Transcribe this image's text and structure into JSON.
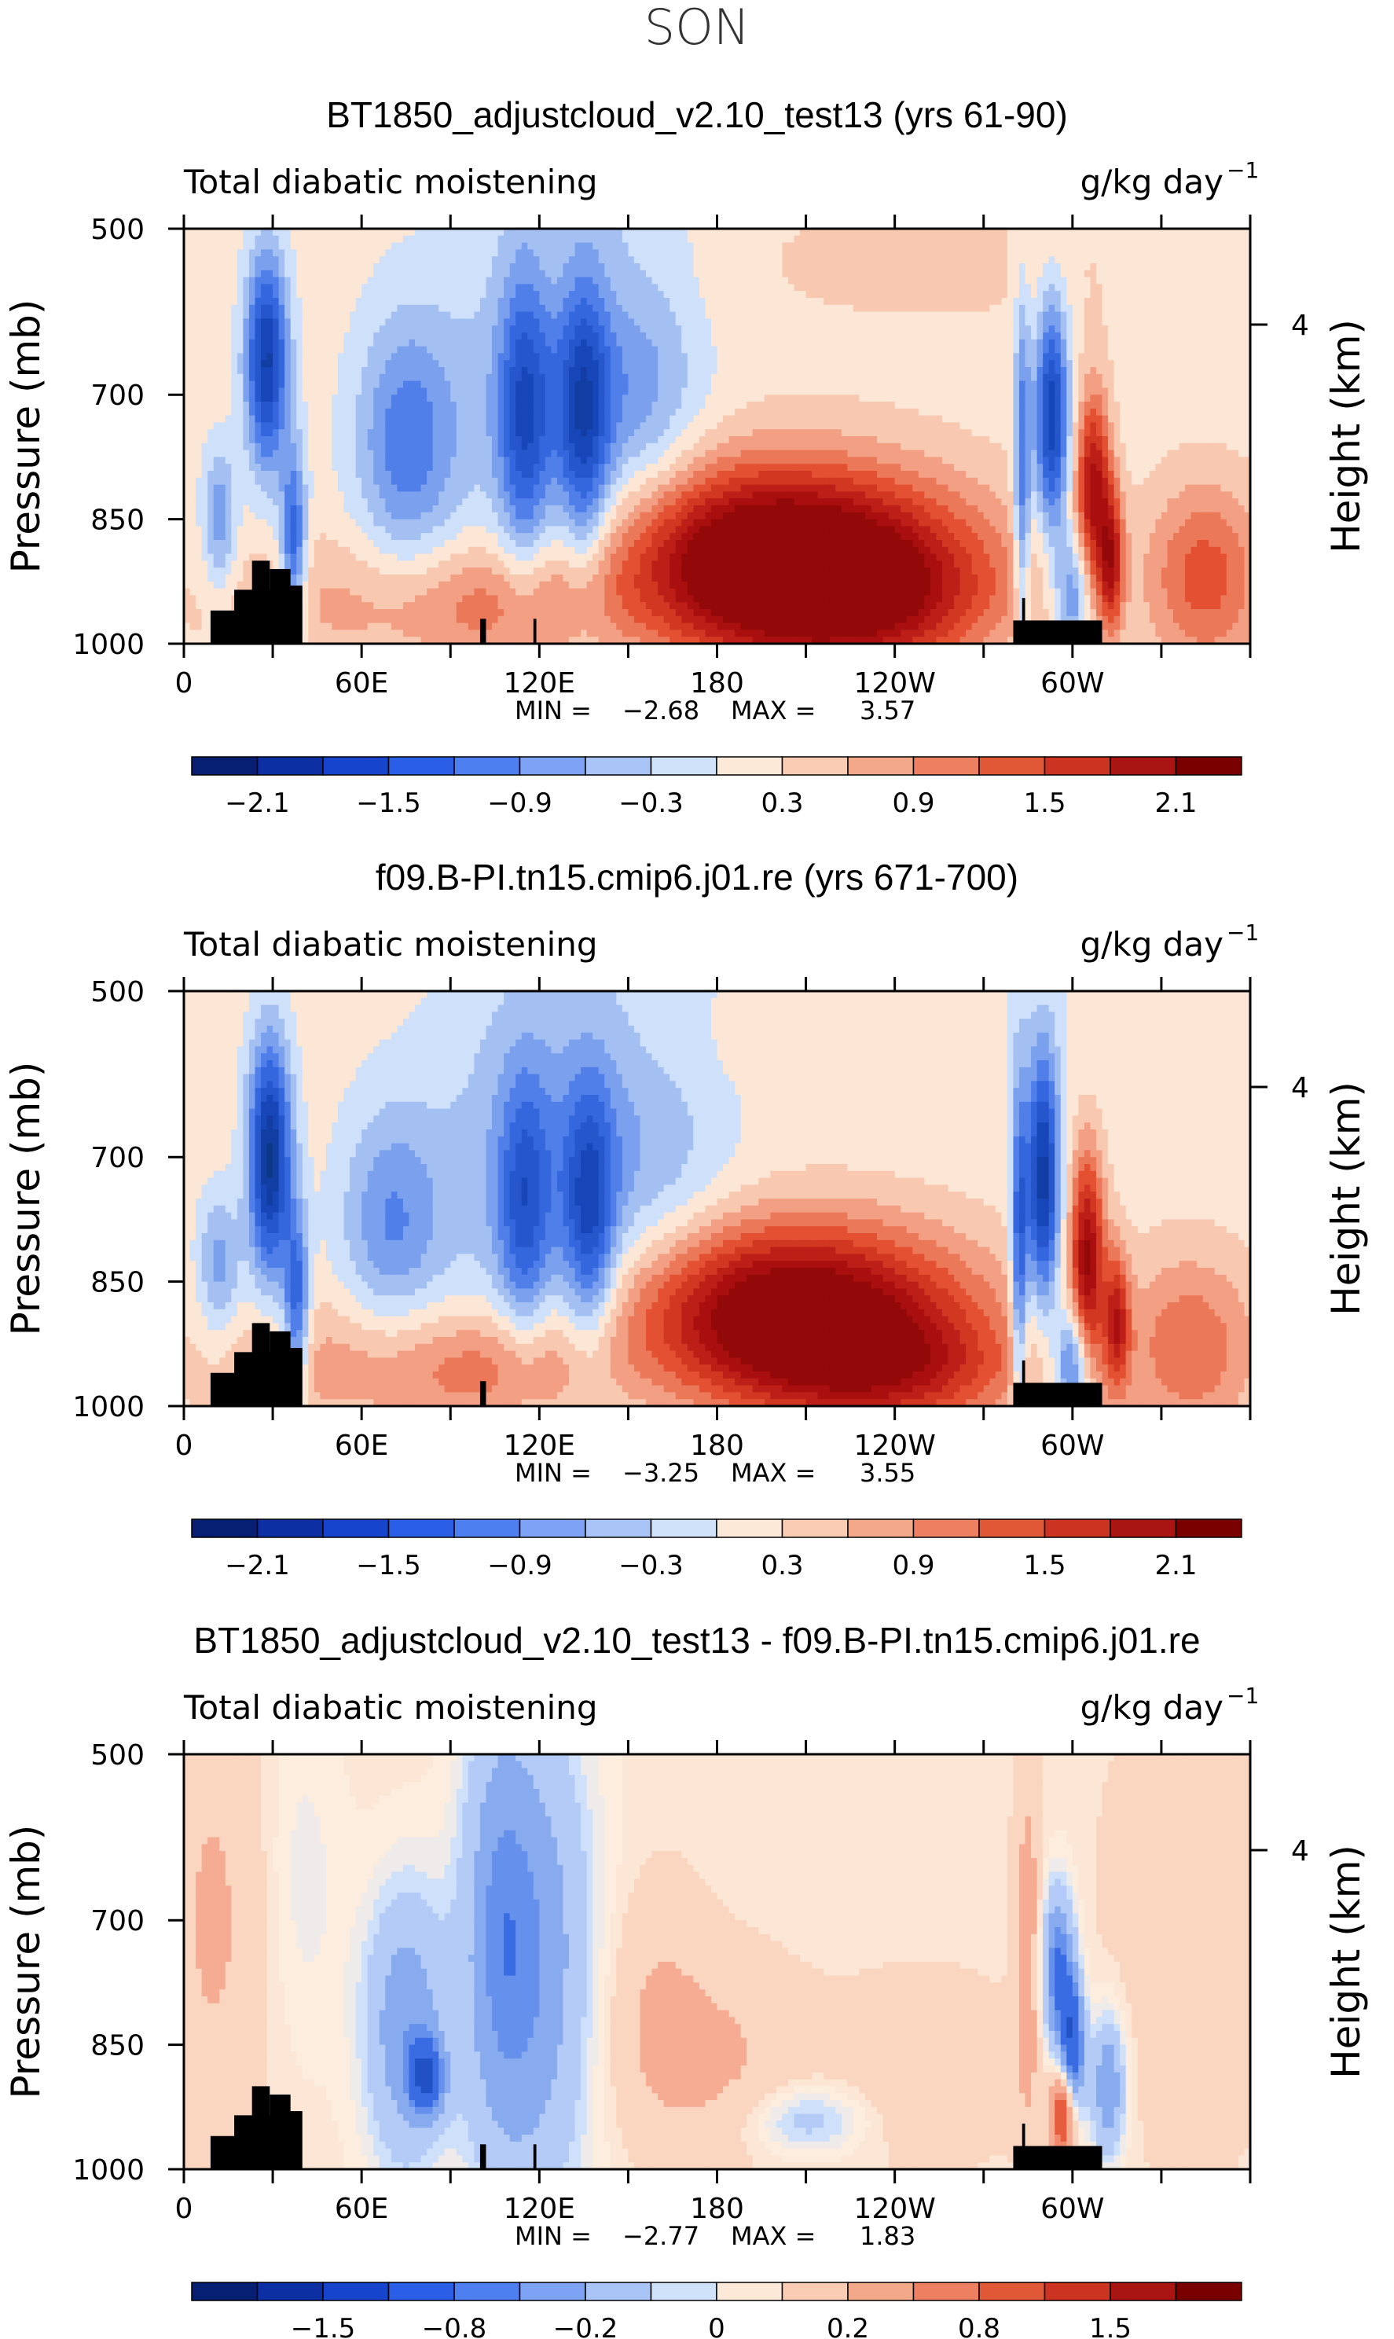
{
  "page": {
    "title": "SON"
  },
  "colors": {
    "map": [
      {
        "v": -3.0,
        "c": "#08306b"
      },
      {
        "v": -2.0,
        "c": "#1543b6"
      },
      {
        "v": -1.2,
        "c": "#3b6fe6"
      },
      {
        "v": -0.6,
        "c": "#8fb0f0"
      },
      {
        "v": -0.15,
        "c": "#cfe0fa"
      },
      {
        "v": 0.0,
        "c": "#fdf0e2"
      },
      {
        "v": 0.3,
        "c": "#fbdcc8"
      },
      {
        "v": 0.8,
        "c": "#f2987c"
      },
      {
        "v": 1.4,
        "c": "#e34b2b"
      },
      {
        "v": 2.1,
        "c": "#b31212"
      },
      {
        "v": 3.0,
        "c": "#7a0000"
      }
    ],
    "colorbar_a": [
      "#061f73",
      "#0c2fa3",
      "#1744cc",
      "#2a5ee6",
      "#4d7ff0",
      "#7ea3f5",
      "#a9c4f7",
      "#d0e1fa",
      "#fde9d8",
      "#f9ccb3",
      "#f3a88a",
      "#ec8060",
      "#e05836",
      "#cc3320",
      "#a81512",
      "#7a0000"
    ],
    "colorbar_b": [
      "#061f73",
      "#0c2fa3",
      "#1744cc",
      "#2a5ee6",
      "#4d7ff0",
      "#7ea3f5",
      "#a9c4f7",
      "#d0e1fa",
      "#fde9d8",
      "#f9ccb3",
      "#f3a88a",
      "#ec8060",
      "#e05836",
      "#cc3320",
      "#a81512",
      "#7a0000"
    ],
    "terrain": "#000000"
  },
  "chart_data": [
    {
      "type": "heatmap",
      "title": "BT1850_adjustcloud_v2.10_test13 (yrs 61-90)",
      "left_label": "Total diabatic moistening",
      "right_label": "g/kg day",
      "units_exp": "−1",
      "ylabel": "Pressure (mb)",
      "right_axis_label": "Height (km)",
      "right_tick": "4",
      "xticks": [
        "0",
        "60E",
        "120E",
        "180",
        "120W",
        "60W"
      ],
      "yticks": [
        "500",
        "700",
        "850",
        "1000"
      ],
      "ylim": [
        1000,
        500
      ],
      "xlim": [
        0,
        360
      ],
      "min_label": "MIN =",
      "min_value": "−2.68",
      "max_label": "MAX =",
      "max_value": "3.57",
      "colorbar_ticks": [
        "−2.1",
        "−1.5",
        "−0.9",
        "−0.3",
        "0.3",
        "0.9",
        "1.5",
        "2.1"
      ],
      "colorbar_levels": [
        -2.4,
        -2.1,
        -1.8,
        -1.5,
        -1.2,
        -0.9,
        -0.6,
        -0.3,
        0,
        0.3,
        0.6,
        0.9,
        1.2,
        1.5,
        1.8,
        2.1,
        2.4
      ],
      "features": [
        {
          "lon": 28,
          "p": 660,
          "dlon": 5,
          "dp": 90,
          "a": -2.3
        },
        {
          "lon": 37,
          "p": 880,
          "dlon": 3,
          "dp": 80,
          "a": -1.6
        },
        {
          "lon": 12,
          "p": 850,
          "dlon": 4,
          "dp": 60,
          "a": -1.0
        },
        {
          "lon": 75,
          "p": 760,
          "dlon": 12,
          "dp": 110,
          "a": -1.2
        },
        {
          "lon": 115,
          "p": 730,
          "dlon": 6,
          "dp": 130,
          "a": -1.4
        },
        {
          "lon": 135,
          "p": 730,
          "dlon": 6,
          "dp": 130,
          "a": -1.5
        },
        {
          "lon": 125,
          "p": 700,
          "dlon": 25,
          "dp": 200,
          "a": -0.8
        },
        {
          "lon": 155,
          "p": 680,
          "dlon": 15,
          "dp": 180,
          "a": -0.6
        },
        {
          "lon": 200,
          "p": 900,
          "dlon": 42,
          "dp": 80,
          "a": 3.2
        },
        {
          "lon": 230,
          "p": 950,
          "dlon": 30,
          "dp": 60,
          "a": 1.2
        },
        {
          "lon": 293,
          "p": 730,
          "dlon": 4,
          "dp": 100,
          "a": -2.2
        },
        {
          "lon": 283,
          "p": 800,
          "dlon": 2,
          "dp": 150,
          "a": -1.4
        },
        {
          "lon": 307,
          "p": 810,
          "dlon": 4,
          "dp": 80,
          "a": 2.0
        },
        {
          "lon": 313,
          "p": 900,
          "dlon": 3,
          "dp": 60,
          "a": 1.8
        },
        {
          "lon": 300,
          "p": 940,
          "dlon": 4,
          "dp": 50,
          "a": -1.2
        },
        {
          "lon": 345,
          "p": 920,
          "dlon": 14,
          "dp": 80,
          "a": 1.2
        },
        {
          "lon": 60,
          "p": 950,
          "dlon": 40,
          "dp": 60,
          "a": 0.5
        },
        {
          "lon": 110,
          "p": 960,
          "dlon": 25,
          "dp": 50,
          "a": 0.7
        },
        {
          "lon": 140,
          "p": 560,
          "dlon": 20,
          "dp": 60,
          "a": 0.3
        },
        {
          "lon": 250,
          "p": 540,
          "dlon": 70,
          "dp": 80,
          "a": 0.2
        }
      ],
      "terrain": [
        {
          "lon0": 9,
          "lon1": 33,
          "p": 960
        },
        {
          "lon0": 17,
          "lon1": 33,
          "p": 935
        },
        {
          "lon0": 23,
          "lon1": 29,
          "p": 900
        },
        {
          "lon0": 29,
          "lon1": 36,
          "p": 910
        },
        {
          "lon0": 33,
          "lon1": 40,
          "p": 930
        },
        {
          "lon0": 280,
          "lon1": 310,
          "p": 972
        },
        {
          "lon0": 283,
          "lon1": 284,
          "p": 945
        },
        {
          "lon0": 100,
          "lon1": 102,
          "p": 970
        },
        {
          "lon0": 118,
          "lon1": 119,
          "p": 970
        }
      ]
    },
    {
      "type": "heatmap",
      "title": "f09.B-PI.tn15.cmip6.j01.re (yrs 671-700)",
      "left_label": "Total diabatic moistening",
      "right_label": "g/kg day",
      "units_exp": "−1",
      "ylabel": "Pressure (mb)",
      "right_axis_label": "Height (km)",
      "right_tick": "4",
      "xticks": [
        "0",
        "60E",
        "120E",
        "180",
        "120W",
        "60W"
      ],
      "yticks": [
        "500",
        "700",
        "850",
        "1000"
      ],
      "ylim": [
        1000,
        500
      ],
      "xlim": [
        0,
        360
      ],
      "min_label": "MIN =",
      "min_value": "−3.25",
      "max_label": "MAX =",
      "max_value": "3.55",
      "colorbar_ticks": [
        "−2.1",
        "−1.5",
        "−0.9",
        "−0.3",
        "0.3",
        "0.9",
        "1.5",
        "2.1"
      ],
      "colorbar_levels": [
        -2.4,
        -2.1,
        -1.8,
        -1.5,
        -1.2,
        -0.9,
        -0.6,
        -0.3,
        0,
        0.3,
        0.6,
        0.9,
        1.2,
        1.5,
        1.8,
        2.1,
        2.4
      ],
      "features": [
        {
          "lon": 29,
          "p": 700,
          "dlon": 5,
          "dp": 100,
          "a": -2.6
        },
        {
          "lon": 38,
          "p": 880,
          "dlon": 3,
          "dp": 80,
          "a": -1.6
        },
        {
          "lon": 12,
          "p": 830,
          "dlon": 5,
          "dp": 60,
          "a": -0.9
        },
        {
          "lon": 70,
          "p": 780,
          "dlon": 12,
          "dp": 100,
          "a": -1.0
        },
        {
          "lon": 115,
          "p": 760,
          "dlon": 6,
          "dp": 110,
          "a": -1.2
        },
        {
          "lon": 137,
          "p": 770,
          "dlon": 6,
          "dp": 110,
          "a": -1.5
        },
        {
          "lon": 120,
          "p": 720,
          "dlon": 25,
          "dp": 200,
          "a": -0.8
        },
        {
          "lon": 160,
          "p": 700,
          "dlon": 20,
          "dp": 180,
          "a": -0.5
        },
        {
          "lon": 205,
          "p": 890,
          "dlon": 40,
          "dp": 75,
          "a": 3.0
        },
        {
          "lon": 240,
          "p": 960,
          "dlon": 30,
          "dp": 50,
          "a": 1.2
        },
        {
          "lon": 290,
          "p": 730,
          "dlon": 4,
          "dp": 110,
          "a": -2.4
        },
        {
          "lon": 282,
          "p": 820,
          "dlon": 2,
          "dp": 150,
          "a": -1.6
        },
        {
          "lon": 305,
          "p": 820,
          "dlon": 4,
          "dp": 90,
          "a": 2.2
        },
        {
          "lon": 315,
          "p": 900,
          "dlon": 3,
          "dp": 60,
          "a": 1.6
        },
        {
          "lon": 300,
          "p": 950,
          "dlon": 4,
          "dp": 50,
          "a": -1.6
        },
        {
          "lon": 340,
          "p": 930,
          "dlon": 16,
          "dp": 80,
          "a": 1.0
        },
        {
          "lon": 60,
          "p": 950,
          "dlon": 40,
          "dp": 60,
          "a": 0.6
        },
        {
          "lon": 110,
          "p": 960,
          "dlon": 25,
          "dp": 50,
          "a": 0.8
        },
        {
          "lon": 250,
          "p": 530,
          "dlon": 60,
          "dp": 80,
          "a": -0.15
        },
        {
          "lon": 170,
          "p": 560,
          "dlon": 30,
          "dp": 60,
          "a": 0.2
        }
      ],
      "terrain": [
        {
          "lon0": 9,
          "lon1": 33,
          "p": 960
        },
        {
          "lon0": 17,
          "lon1": 33,
          "p": 935
        },
        {
          "lon0": 23,
          "lon1": 29,
          "p": 900
        },
        {
          "lon0": 29,
          "lon1": 36,
          "p": 910
        },
        {
          "lon0": 33,
          "lon1": 40,
          "p": 930
        },
        {
          "lon0": 280,
          "lon1": 310,
          "p": 972
        },
        {
          "lon0": 283,
          "lon1": 284,
          "p": 945
        },
        {
          "lon0": 100,
          "lon1": 102,
          "p": 970
        }
      ]
    },
    {
      "type": "heatmap",
      "title": "BT1850_adjustcloud_v2.10_test13 - f09.B-PI.tn15.cmip6.j01.re",
      "left_label": "Total diabatic moistening",
      "right_label": "g/kg day",
      "units_exp": "−1",
      "ylabel": "Pressure (mb)",
      "right_axis_label": "Height (km)",
      "right_tick": "4",
      "xticks": [
        "0",
        "60E",
        "120E",
        "180",
        "120W",
        "60W"
      ],
      "yticks": [
        "500",
        "700",
        "850",
        "1000"
      ],
      "ylim": [
        1000,
        500
      ],
      "xlim": [
        0,
        360
      ],
      "min_label": "MIN =",
      "min_value": "−2.77",
      "max_label": "MAX =",
      "max_value": "1.83",
      "colorbar_ticks": [
        "−1.5",
        "−0.8",
        "−0.2",
        "0",
        "0.2",
        "0.8",
        "1.5"
      ],
      "colorbar_levels": [
        -2.5,
        -2.0,
        -1.5,
        -1.0,
        -0.8,
        -0.5,
        -0.2,
        -0.1,
        0,
        0.1,
        0.2,
        0.5,
        0.8,
        1.0,
        1.5,
        2.0,
        2.5
      ],
      "features": [
        {
          "lon": 10,
          "p": 700,
          "dlon": 12,
          "dp": 200,
          "a": 0.4
        },
        {
          "lon": 40,
          "p": 650,
          "dlon": 10,
          "dp": 150,
          "a": -0.2
        },
        {
          "lon": 75,
          "p": 830,
          "dlon": 10,
          "dp": 120,
          "a": -0.9
        },
        {
          "lon": 82,
          "p": 890,
          "dlon": 4,
          "dp": 30,
          "a": -1.4
        },
        {
          "lon": 118,
          "p": 750,
          "dlon": 14,
          "dp": 220,
          "a": -0.9
        },
        {
          "lon": 105,
          "p": 700,
          "dlon": 8,
          "dp": 200,
          "a": -0.5
        },
        {
          "lon": 160,
          "p": 800,
          "dlon": 12,
          "dp": 100,
          "a": 0.3
        },
        {
          "lon": 180,
          "p": 870,
          "dlon": 20,
          "dp": 80,
          "a": 0.4
        },
        {
          "lon": 210,
          "p": 940,
          "dlon": 15,
          "dp": 30,
          "a": -0.5
        },
        {
          "lon": 250,
          "p": 880,
          "dlon": 20,
          "dp": 70,
          "a": 0.3
        },
        {
          "lon": 295,
          "p": 760,
          "dlon": 4,
          "dp": 70,
          "a": -1.2
        },
        {
          "lon": 300,
          "p": 860,
          "dlon": 3,
          "dp": 60,
          "a": -1.6
        },
        {
          "lon": 297,
          "p": 930,
          "dlon": 3,
          "dp": 40,
          "a": 1.6
        },
        {
          "lon": 285,
          "p": 740,
          "dlon": 3,
          "dp": 160,
          "a": 0.6
        },
        {
          "lon": 312,
          "p": 900,
          "dlon": 4,
          "dp": 60,
          "a": -1.0
        },
        {
          "lon": 340,
          "p": 700,
          "dlon": 20,
          "dp": 200,
          "a": 0.2
        }
      ],
      "terrain": [
        {
          "lon0": 9,
          "lon1": 33,
          "p": 960
        },
        {
          "lon0": 17,
          "lon1": 33,
          "p": 935
        },
        {
          "lon0": 23,
          "lon1": 29,
          "p": 900
        },
        {
          "lon0": 29,
          "lon1": 36,
          "p": 910
        },
        {
          "lon0": 33,
          "lon1": 40,
          "p": 930
        },
        {
          "lon0": 280,
          "lon1": 310,
          "p": 972
        },
        {
          "lon0": 283,
          "lon1": 284,
          "p": 945
        },
        {
          "lon0": 100,
          "lon1": 102,
          "p": 970
        },
        {
          "lon0": 118,
          "lon1": 119,
          "p": 970
        }
      ]
    }
  ]
}
